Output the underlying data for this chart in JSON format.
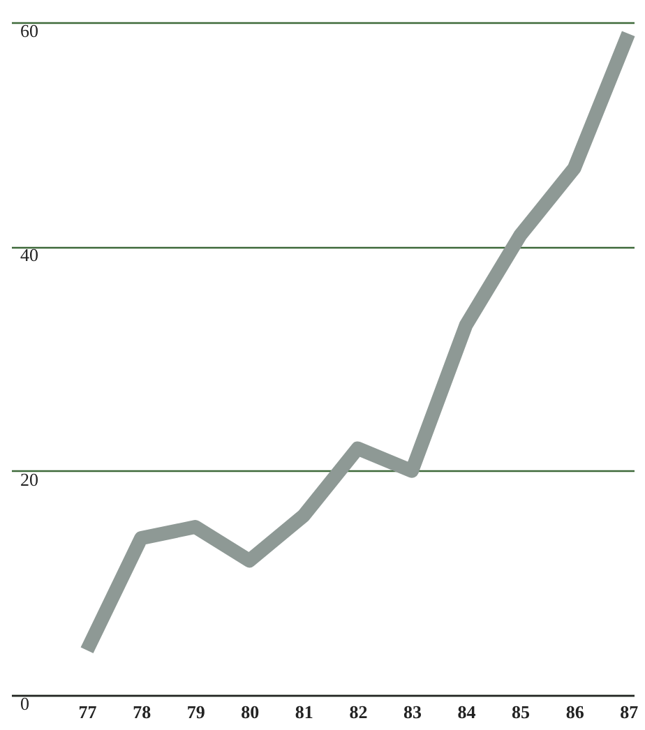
{
  "chart_data": {
    "type": "line",
    "x": [
      77,
      78,
      79,
      80,
      81,
      82,
      83,
      84,
      85,
      86,
      87
    ],
    "series": [
      {
        "color": "#8e9995",
        "values": [
          4,
          14,
          15,
          12,
          16,
          22,
          20,
          33,
          41,
          47,
          59
        ]
      }
    ],
    "xlim": [
      75.6,
      87.1
    ],
    "xticks": [
      77,
      78,
      79,
      80,
      81,
      82,
      83,
      84,
      85,
      86,
      87
    ],
    "ylim": [
      0,
      62
    ],
    "yticks": [
      0,
      20,
      40,
      60
    ],
    "grid": "y",
    "line_style": "solid",
    "marker": "none"
  }
}
